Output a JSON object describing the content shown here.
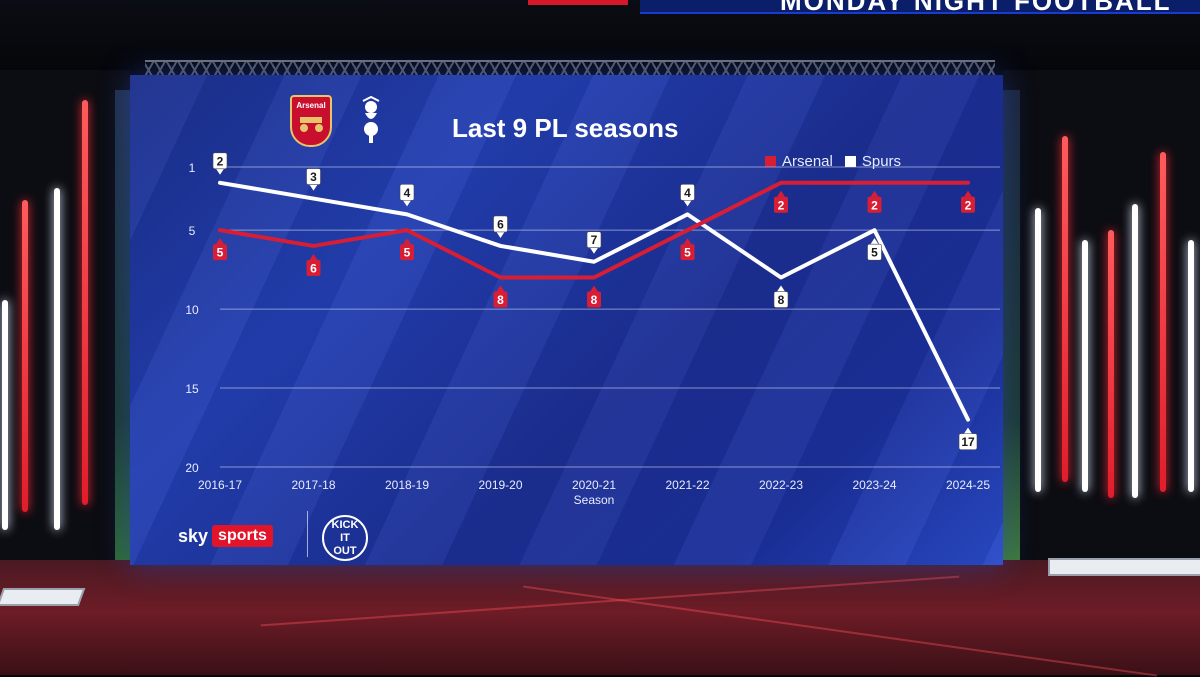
{
  "broadcast": {
    "ticker_text": "MONDAY NIGHT FOOTBALL"
  },
  "chart_data": {
    "type": "line",
    "title": "Last 9 PL seasons",
    "xlabel": "Season",
    "ylabel": "",
    "categories": [
      "2016-17",
      "2017-18",
      "2018-19",
      "2019-20",
      "2020-21",
      "2021-22",
      "2022-23",
      "2023-24",
      "2024-25"
    ],
    "y_axis": {
      "inverted": true,
      "ylim": [
        1,
        20
      ],
      "ticks": [
        1,
        5,
        10,
        15,
        20
      ]
    },
    "grid": true,
    "legend_position": "top-right",
    "series": [
      {
        "name": "Arsenal",
        "color": "#d71e35",
        "values": [
          5,
          6,
          5,
          8,
          8,
          5,
          2,
          2,
          2
        ]
      },
      {
        "name": "Spurs",
        "color": "#ffffff",
        "values": [
          2,
          3,
          4,
          6,
          7,
          4,
          8,
          5,
          17
        ]
      }
    ]
  },
  "badges": {
    "arsenal_text": "Arsenal",
    "arsenal_icon": "arsenal-crest-icon",
    "spurs_icon": "spurs-cockerel-icon"
  },
  "logos": {
    "sky_word": "sky",
    "sports_word": "sports",
    "kick_it_out_lines": [
      "KICK",
      "IT",
      "OUT"
    ]
  },
  "colors": {
    "screen_blue": "#1f37a6",
    "arsenal_red": "#d71e35",
    "spurs_white": "#ffffff"
  }
}
